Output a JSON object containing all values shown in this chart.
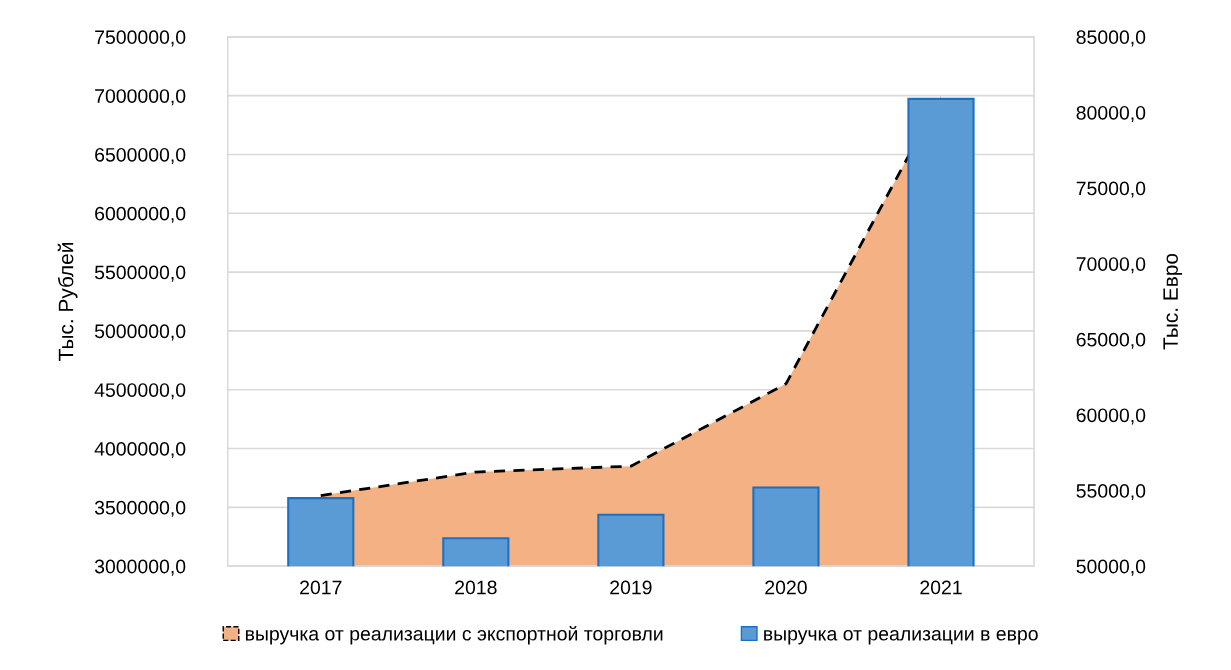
{
  "chart_data": {
    "type": "bar",
    "ylabel": "Тыс. Рублей",
    "y2label": "Тыс. Евро",
    "categories": [
      "2017",
      "2018",
      "2019",
      "2020",
      "2021"
    ],
    "series": [
      {
        "name": "выручка от реализации с экспортной торговли",
        "type": "area",
        "color": "#f4b183",
        "line_style": "dashed",
        "values": [
          3600000,
          3800000,
          3850000,
          4550000,
          7000000
        ]
      },
      {
        "name": "выручка от реализации в евро",
        "axis": "y2",
        "color": "#5b9bd5",
        "values": [
          54500,
          51850,
          53400,
          55200,
          80900
        ]
      }
    ],
    "ylim": [
      3000000,
      7500000
    ],
    "yticks": [
      {
        "value": 3000000,
        "label": "3000000,0"
      },
      {
        "value": 3500000,
        "label": "3500000,0"
      },
      {
        "value": 4000000,
        "label": "4000000,0"
      },
      {
        "value": 4500000,
        "label": "4500000,0"
      },
      {
        "value": 5000000,
        "label": "5000000,0"
      },
      {
        "value": 5500000,
        "label": "5500000,0"
      },
      {
        "value": 6000000,
        "label": "6000000,0"
      },
      {
        "value": 6500000,
        "label": "6500000,0"
      },
      {
        "value": 7000000,
        "label": "7000000,0"
      },
      {
        "value": 7500000,
        "label": "7500000,0"
      }
    ],
    "y2lim": [
      50000,
      85000
    ],
    "y2ticks": [
      {
        "value": 50000,
        "label": "50000,0"
      },
      {
        "value": 55000,
        "label": "55000,0"
      },
      {
        "value": 60000,
        "label": "60000,0"
      },
      {
        "value": 65000,
        "label": "65000,0"
      },
      {
        "value": 70000,
        "label": "70000,0"
      },
      {
        "value": 75000,
        "label": "75000,0"
      },
      {
        "value": 80000,
        "label": "80000,0"
      },
      {
        "value": 85000,
        "label": "85000,0"
      }
    ],
    "grid": "y",
    "legend": "bottom"
  }
}
